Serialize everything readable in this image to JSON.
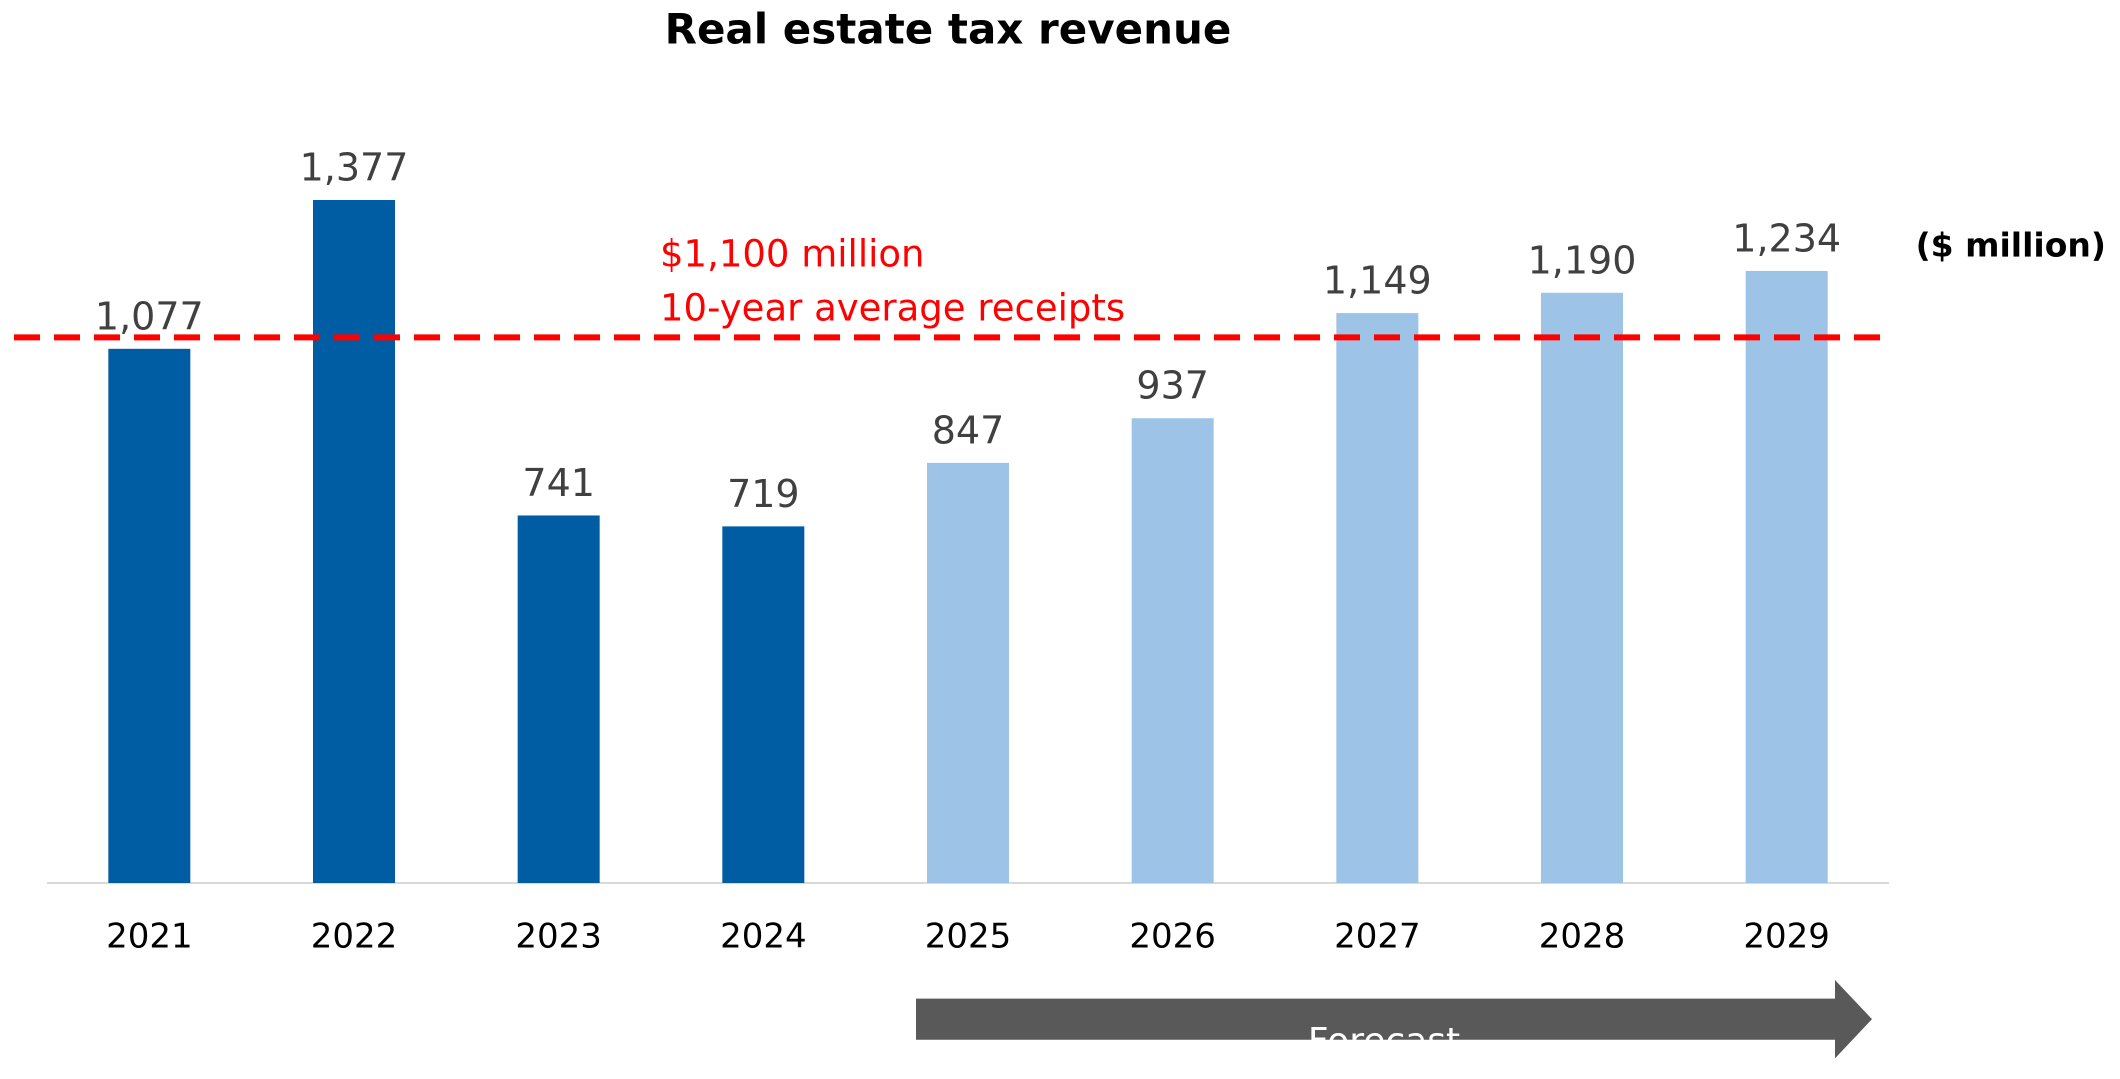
{
  "chart_data": {
    "type": "bar",
    "title": "Real estate tax revenue",
    "unit_label": "($ million)",
    "categories": [
      "2021",
      "2022",
      "2023",
      "2024",
      "2025",
      "2026",
      "2027",
      "2028",
      "2029"
    ],
    "values": [
      1077,
      1377,
      741,
      719,
      847,
      937,
      1149,
      1190,
      1234
    ],
    "value_labels": [
      "1,077",
      "1,377",
      "741",
      "719",
      "847",
      "937",
      "1,149",
      "1,190",
      "1,234"
    ],
    "colors": [
      "#005da4",
      "#005da4",
      "#005da4",
      "#005da4",
      "#9dc3e6",
      "#9dc3e6",
      "#9dc3e6",
      "#9dc3e6",
      "#9dc3e6"
    ],
    "ylim": [
      0,
      1500
    ],
    "reference_line": {
      "value": 1100,
      "color": "#ff0000",
      "label": [
        "$1,100 million",
        "10-year average receipts"
      ]
    },
    "forecast_label": "Forecast"
  }
}
